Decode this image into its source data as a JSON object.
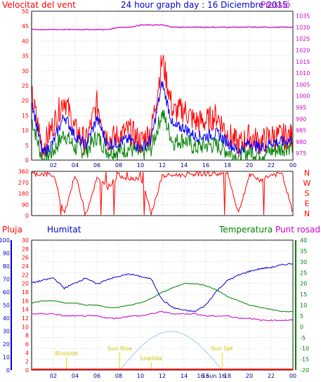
{
  "colors": {
    "wind_speed": "#ff0000",
    "wind_avg": "#0000ff",
    "wind_min": "#008000",
    "pressure": "#c800c8",
    "direction": "#ff0000",
    "humidity": "#0000c8",
    "temperature": "#008000",
    "dewpoint": "#c800c8",
    "rain": "#ff0000",
    "sun": "#a0c8f0",
    "events": "#e0e000",
    "grid": "#aaaaaa"
  },
  "x_ticks": [
    "02",
    "04",
    "06",
    "08",
    "10",
    "12",
    "14",
    "16",
    "18",
    "20",
    "22",
    "00"
  ],
  "chart_data": [
    {
      "type": "line",
      "title": "24 hour graph day : 16 Diciembre 2015",
      "left_label": "Velocitat del vent",
      "right_label": "Pressió",
      "y_left_ticks": [
        0,
        5,
        10,
        15,
        20,
        25,
        30,
        35,
        40,
        45,
        50
      ],
      "ylim_left": [
        0,
        50
      ],
      "y_right_ticks": [
        975,
        980,
        985,
        990,
        995,
        1000,
        1005,
        1010,
        1015,
        1020,
        1025,
        1030,
        1035
      ],
      "ylim_right": [
        972,
        1037
      ],
      "grid": true,
      "x": [
        "00",
        "01",
        "02",
        "03",
        "04",
        "05",
        "06",
        "07",
        "08",
        "09",
        "10",
        "11",
        "12",
        "13",
        "14",
        "15",
        "16",
        "17",
        "18",
        "19",
        "20",
        "21",
        "22",
        "23",
        "00"
      ],
      "series": [
        {
          "values": [
            22,
            4,
            12,
            21,
            10,
            6,
            19,
            7,
            8,
            10,
            6,
            10,
            34,
            16,
            17,
            13,
            13,
            15,
            9,
            5,
            8,
            6,
            8,
            8,
            8
          ]
        },
        {
          "values": [
            20,
            2,
            6,
            15,
            8,
            5,
            14,
            5,
            6,
            7,
            4,
            7,
            26,
            11,
            11,
            8,
            8,
            9,
            6,
            3,
            6,
            4,
            6,
            6,
            7
          ]
        },
        {
          "values": [
            14,
            0,
            3,
            9,
            4,
            3,
            8,
            3,
            3,
            4,
            2,
            4,
            16,
            6,
            7,
            4,
            5,
            5,
            3,
            1,
            3,
            2,
            3,
            4,
            5
          ]
        },
        {
          "axis": "right",
          "values": [
            1029,
            1029,
            1029,
            1029,
            1029,
            1029,
            1029,
            1029,
            1030,
            1030,
            1031,
            1031,
            1031,
            1030,
            1030,
            1030,
            1030,
            1030,
            1030,
            1030,
            1030,
            1030,
            1030,
            1030,
            1030
          ]
        }
      ]
    },
    {
      "type": "line",
      "title": "",
      "y_ticks": [
        0,
        90,
        180,
        270,
        360
      ],
      "ylim": [
        0,
        360
      ],
      "right_labels": [
        "N",
        "W",
        "S",
        "E",
        "N"
      ],
      "grid": true,
      "x": [
        "00",
        "01",
        "02",
        "03",
        "04",
        "05",
        "06",
        "07",
        "08",
        "09",
        "10",
        "11",
        "12",
        "13",
        "14",
        "15",
        "16",
        "17",
        "18",
        "19",
        "20",
        "21",
        "22",
        "23",
        "00"
      ],
      "series": [
        {
          "values": [
            340,
            340,
            330,
            20,
            330,
            20,
            300,
            230,
            330,
            300,
            310,
            20,
            320,
            330,
            330,
            340,
            340,
            340,
            340,
            20,
            330,
            290,
            330,
            340,
            20
          ]
        }
      ]
    },
    {
      "type": "line",
      "title": "",
      "labels": {
        "rain": "Pluja",
        "humidity": "Humitat",
        "temperature": "Temperatura",
        "dewpoint": "Punt rosada"
      },
      "y_humidity_ticks": [
        0,
        10,
        20,
        30,
        40,
        50,
        60,
        70,
        80,
        90,
        100
      ],
      "y_rain_ticks": [
        0,
        2,
        4,
        6,
        8,
        10,
        12,
        14,
        16,
        18,
        20,
        22,
        24,
        26,
        28,
        30
      ],
      "y_temp_ticks": [
        -20,
        -15,
        -10,
        -5,
        0,
        5,
        10,
        15,
        20,
        25,
        30,
        35,
        40
      ],
      "ylim_humidity": [
        0,
        100
      ],
      "ylim_temp": [
        -20,
        40
      ],
      "grid": true,
      "x": [
        "00",
        "01",
        "02",
        "03",
        "04",
        "05",
        "06",
        "07",
        "08",
        "09",
        "10",
        "11",
        "12",
        "13",
        "14",
        "15",
        "16",
        "17",
        "18",
        "19",
        "20",
        "21",
        "22",
        "23",
        "00"
      ],
      "series": [
        {
          "values": [
            67,
            69,
            71,
            63,
            67,
            71,
            66,
            70,
            72,
            74,
            72,
            70,
            54,
            48,
            46,
            45,
            50,
            61,
            69,
            73,
            76,
            78,
            79,
            81,
            82
          ]
        },
        {
          "axis": "temp",
          "values": [
            11,
            12,
            12,
            11,
            11,
            10,
            10,
            9,
            9,
            10,
            11,
            13,
            16,
            18,
            20,
            20,
            19,
            17,
            14,
            12,
            10,
            9,
            8,
            7,
            7
          ]
        },
        {
          "axis": "temp",
          "values": [
            6,
            6,
            6,
            5,
            5,
            5,
            5,
            4,
            4,
            5,
            5,
            6,
            7,
            6,
            6,
            6,
            5,
            5,
            5,
            4,
            4,
            3,
            3,
            3,
            3
          ]
        }
      ],
      "sun_events": [
        {
          "label": "Birdside",
          "hour": 3.2
        },
        {
          "label": "Sun Rise",
          "hour": 8.1
        },
        {
          "label": "Lowtide",
          "hour": 11.0
        },
        {
          "label": "Sun Set",
          "hour": 17.5
        }
      ],
      "axis_marker": "16 Sun 16"
    }
  ]
}
